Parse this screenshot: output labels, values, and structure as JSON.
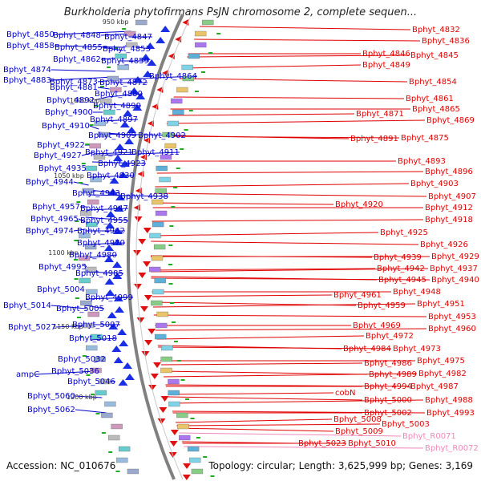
{
  "title": "Burkholderia phytofirmans PsJN chromosome 2, complete sequen...",
  "footer": {
    "accession": "Accession: NC_010676",
    "summary": "Topology: circular; Length: 3,625,999 bp; Genes: 3,169"
  },
  "colors": {
    "left_labels": "#0000cc",
    "right_labels": "#e00000",
    "rna_labels": "#ee88bb",
    "backbone": "#808080",
    "ticks": "#22aa22"
  },
  "ruler_marks": [
    "950 kbp",
    "1000 kbp",
    "1050 kbp",
    "1100 kbp",
    "1150 kbp",
    "1200 kbp"
  ],
  "left_genes": [
    "Bphyt_4850",
    "Bphyt_4848",
    "Bphyt_4847",
    "Bphyt_4858",
    "Bphyt_4855",
    "Bphyt_4853",
    "Bphyt_4862",
    "Bphyt_4859",
    "Bphyt_4874",
    "Bphyt_4864",
    "Bphyt_4883",
    "Bphyt_4873",
    "Bphyt_4872",
    "Bphyt_4881",
    "Bphyt_4880",
    "Bphyt_4892",
    "Bphyt_4890",
    "Bphyt_4900",
    "Bphyt_4897",
    "Bphyt_4910",
    "Bphyt_4909",
    "Bphyt_4902",
    "Bphyt_4922",
    "Bphyt_4921",
    "Bphyt_4911",
    "Bphyt_4927",
    "Bphyt_4923",
    "Bphyt_4935",
    "Bphyt_4930",
    "Bphyt_4944",
    "Bphyt_4943",
    "Bphyt_4938",
    "Bphyt_4957",
    "Bphyt_4947",
    "Bphyt_4965",
    "Bphyt_4955",
    "Bphyt_4974",
    "Bphyt_4962",
    "Bphyt_4970",
    "Bphyt_4980",
    "Bphyt_4995",
    "Bphyt_4985",
    "Bphyt_5004",
    "Bphyt_4999",
    "Bphyt_5014",
    "Bphyt_5005",
    "Bphyt_5027",
    "Bphyt_5007",
    "Bphyt_5018",
    "Bphyt_5032",
    "ampC",
    "Bphyt_5036",
    "Bphyt_5046",
    "Bphyt_5060",
    "Bphyt_5062"
  ],
  "right_genes": [
    "Bphyt_4832",
    "Bphyt_4836",
    "Bphyt_4846",
    "Bphyt_4845",
    "Bphyt_4849",
    "Bphyt_4854",
    "Bphyt_4861",
    "Bphyt_4865",
    "Bphyt_4871",
    "Bphyt_4869",
    "Bphyt_4891",
    "Bphyt_4875",
    "Bphyt_4893",
    "Bphyt_4896",
    "Bphyt_4903",
    "Bphyt_4907",
    "Bphyt_4920",
    "Bphyt_4912",
    "Bphyt_4918",
    "Bphyt_4925",
    "Bphyt_4926",
    "Bphyt_4939",
    "Bphyt_4929",
    "Bphyt_4942",
    "Bphyt_4937",
    "Bphyt_4945",
    "Bphyt_4940",
    "Bphyt_4948",
    "Bphyt_4961",
    "Bphyt_4951",
    "Bphyt_4959",
    "Bphyt_4953",
    "Bphyt_4969",
    "Bphyt_4960",
    "Bphyt_4972",
    "Bphyt_4984",
    "Bphyt_4973",
    "Bphyt_4975",
    "Bphyt_4986",
    "Bphyt_4982",
    "Bphyt_4989",
    "Bphyt_4987",
    "Bphyt_4994",
    "cobN",
    "Bphyt_4988",
    "Bphyt_5000",
    "Bphyt_4993",
    "Bphyt_5002",
    "Bphyt_5003",
    "Bphyt_5008",
    "Bphyt_5009",
    "Bphyt_5023",
    "Bphyt_5010"
  ],
  "rna_genes": [
    "Bphyt_R0071",
    "Bphyt_R0072"
  ]
}
